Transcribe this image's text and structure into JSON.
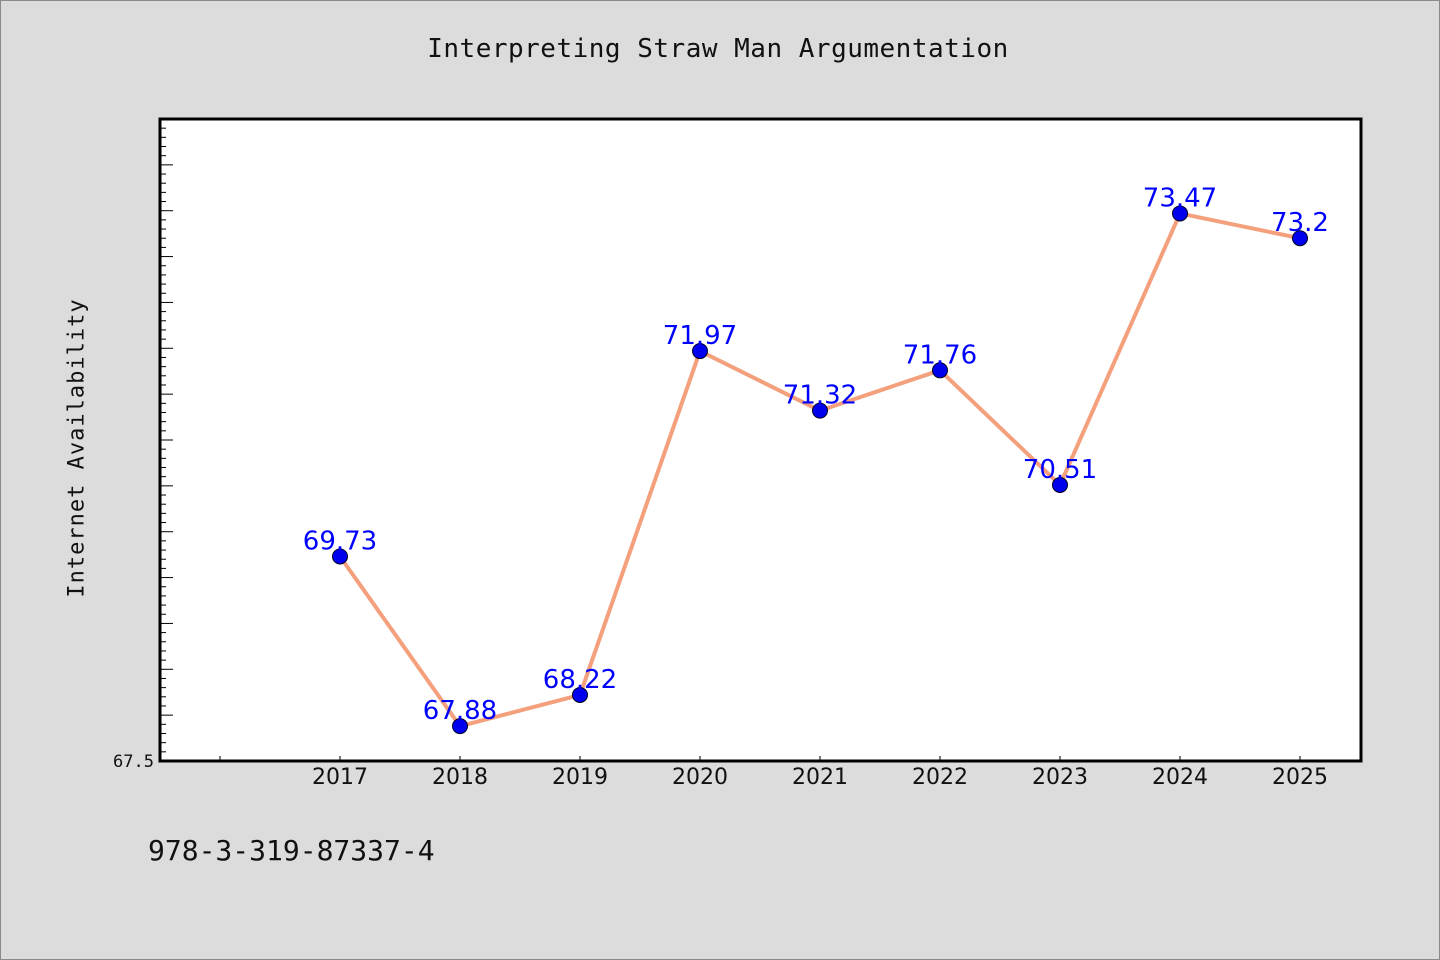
{
  "title": "Interpreting Straw Man Argumentation",
  "footer_text": "978-3-319-87337-4",
  "chart_data": {
    "type": "line",
    "title": "Interpreting Straw Man Argumentation",
    "xlabel": "",
    "ylabel": "Internet Availability",
    "categories": [
      "2017",
      "2018",
      "2019",
      "2020",
      "2021",
      "2022",
      "2023",
      "2024",
      "2025"
    ],
    "values": [
      69.73,
      67.88,
      68.22,
      71.97,
      71.32,
      71.76,
      70.51,
      73.47,
      73.2
    ],
    "data_labels": [
      "69.73",
      "67.88",
      "68.22",
      "71.97",
      "71.32",
      "71.76",
      "70.51",
      "73.47",
      "73.2"
    ],
    "ylim": [
      67.5,
      74.5
    ],
    "y_tick_labels": [
      "67.5"
    ],
    "grid": false,
    "line_color": "#f4a07c",
    "marker_color": "#0000ee",
    "label_color": "#0000ff"
  }
}
